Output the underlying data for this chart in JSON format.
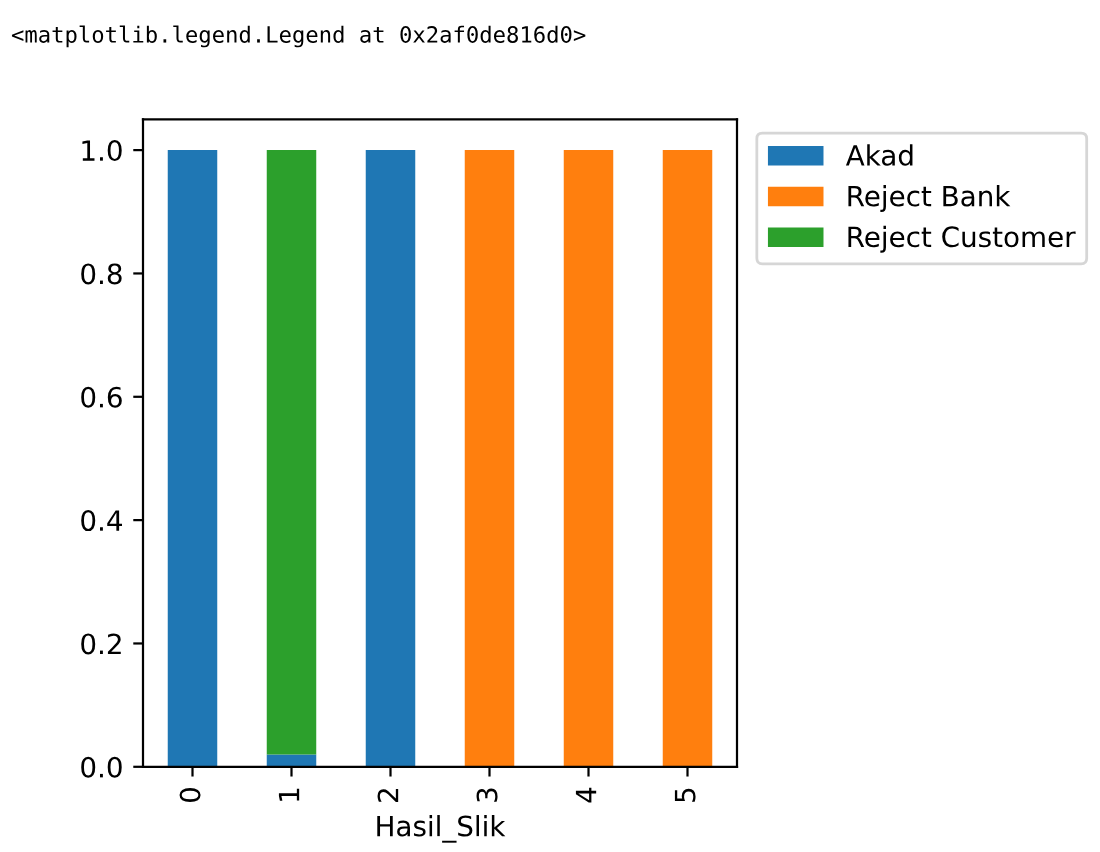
{
  "chart_data": {
    "type": "bar",
    "stacked": true,
    "xlabel": "Hasil_Slik",
    "categories": [
      "0",
      "1",
      "2",
      "3",
      "4",
      "5"
    ],
    "series": [
      {
        "name": "Akad",
        "color": "#1f77b4",
        "values": [
          1.0,
          0.02,
          1.0,
          0,
          0,
          0
        ]
      },
      {
        "name": "Reject Bank",
        "color": "#ff7f0e",
        "values": [
          0,
          0,
          0,
          1.0,
          1.0,
          1.0
        ]
      },
      {
        "name": "Reject Customer",
        "color": "#2ca02c",
        "values": [
          0,
          0.98,
          0,
          0,
          0,
          0
        ]
      }
    ],
    "ylim": [
      0,
      1.05
    ],
    "yticks": [
      {
        "value": 0,
        "label": "0.0"
      },
      {
        "value": 0.2,
        "label": "0.2"
      },
      {
        "value": 0.4,
        "label": "0.4"
      },
      {
        "value": 0.6,
        "label": "0.6"
      },
      {
        "value": 0.8,
        "label": "0.8"
      },
      {
        "value": 1.0,
        "label": "1.0"
      }
    ],
    "legend": "top right",
    "grid": false,
    "annotations": [
      "<matplotlib.legend.Legend at 0x2af0de816d0>"
    ]
  }
}
